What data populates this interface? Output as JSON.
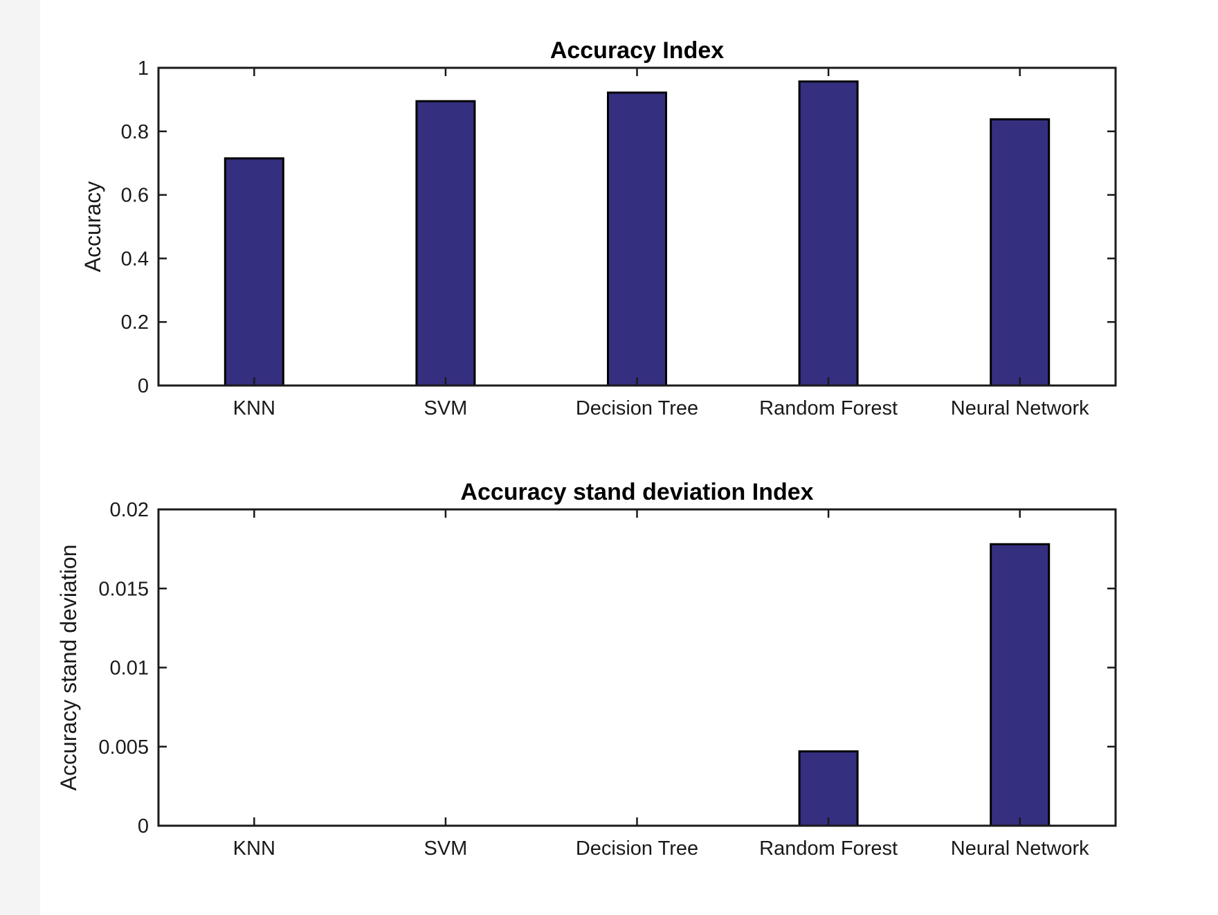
{
  "colors": {
    "bar_fill": "#352f80",
    "bar_edge": "#000000",
    "axis": "#1a1a1a"
  },
  "chart_data": [
    {
      "type": "bar",
      "title": "Accuracy Index",
      "xlabel": "",
      "ylabel": "Accuracy",
      "categories": [
        "KNN",
        "SVM",
        "Decision Tree",
        "Random Forest",
        "Neural Network"
      ],
      "values": [
        0.715,
        0.895,
        0.922,
        0.957,
        0.838
      ],
      "ylim": [
        0,
        1
      ],
      "yticks": [
        0,
        0.2,
        0.4,
        0.6,
        0.8,
        1
      ],
      "ytick_labels": [
        "0",
        "0.2",
        "0.4",
        "0.6",
        "0.8",
        "1"
      ],
      "grid": false,
      "legend": "none"
    },
    {
      "type": "bar",
      "title": "Accuracy stand deviation Index",
      "xlabel": "",
      "ylabel": "Accuracy stand deviation",
      "categories": [
        "KNN",
        "SVM",
        "Decision Tree",
        "Random Forest",
        "Neural Network"
      ],
      "values": [
        0,
        0,
        0,
        0.0047,
        0.0178
      ],
      "ylim": [
        0,
        0.02
      ],
      "yticks": [
        0,
        0.005,
        0.01,
        0.015,
        0.02
      ],
      "ytick_labels": [
        "0",
        "0.005",
        "0.01",
        "0.015",
        "0.02"
      ],
      "grid": false,
      "legend": "none"
    }
  ]
}
